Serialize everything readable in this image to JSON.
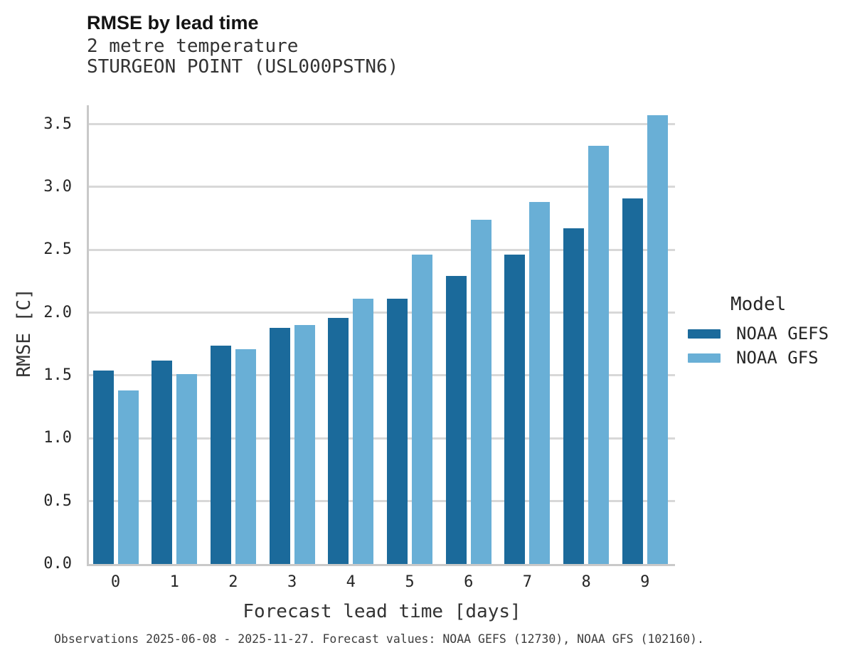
{
  "header": {
    "title": "RMSE by lead time",
    "subtitle_line1": "2 metre temperature",
    "subtitle_line2": "STURGEON POINT (USL000PSTN6)"
  },
  "legend": {
    "title": "Model",
    "entries": [
      {
        "label": "NOAA GEFS",
        "color": "#1b6a9b"
      },
      {
        "label": "NOAA GFS",
        "color": "#69afd6"
      }
    ]
  },
  "footer": {
    "caption": "Observations 2025-06-08 - 2025-11-27. Forecast values: NOAA GEFS (12730), NOAA GFS (102160)."
  },
  "colors": {
    "gefs_bar": "#1b6a9b",
    "gfs_bar": "#69afd6",
    "gridline": "#d8d8d8",
    "spine": "#c9c9c9",
    "text_dark": "#262626",
    "text_gray": "#333333"
  },
  "chart_data": {
    "type": "bar",
    "title": "RMSE by lead time",
    "subtitle": [
      "2 metre temperature",
      "STURGEON POINT (USL000PSTN6)"
    ],
    "categories": [
      "0",
      "1",
      "2",
      "3",
      "4",
      "5",
      "6",
      "7",
      "8",
      "9"
    ],
    "series": [
      {
        "name": "NOAA GEFS",
        "color": "#1b6a9b",
        "values": [
          1.54,
          1.62,
          1.74,
          1.88,
          1.96,
          2.11,
          2.29,
          2.46,
          2.67,
          2.91
        ]
      },
      {
        "name": "NOAA GFS",
        "color": "#69afd6",
        "values": [
          1.38,
          1.51,
          1.71,
          1.9,
          2.11,
          2.46,
          2.74,
          2.88,
          3.33,
          3.57
        ]
      }
    ],
    "xlabel": "Forecast lead time [days]",
    "ylabel": "RMSE [C]",
    "ylim": [
      0,
      3.65
    ],
    "yticks": [
      0.0,
      0.5,
      1.0,
      1.5,
      2.0,
      2.5,
      3.0,
      3.5
    ],
    "grid": "horizontal",
    "legend_title": "Model",
    "legend_position": "right"
  }
}
